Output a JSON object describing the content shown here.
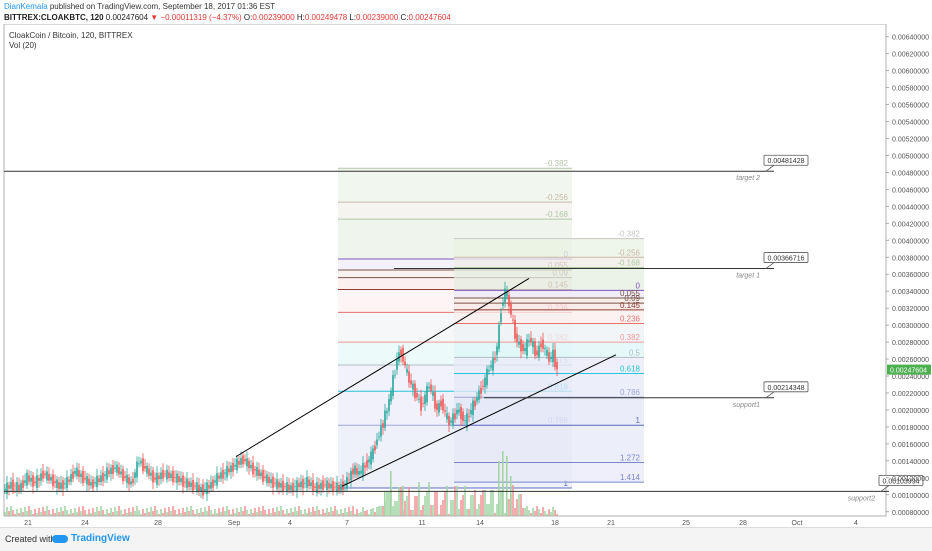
{
  "header": {
    "user": "DianKemala",
    "published": "published on TradingView.com, September 18, 2017 01:36 EST",
    "symbol": "BITTREX:CLOAKBTC, 120",
    "last": "0.00247604",
    "change": "▼ −0.00011319 (−4.37%)",
    "o_label": "O:",
    "o": "0.00239000",
    "h_label": "H:",
    "h": "0.00249478",
    "l_label": "L:",
    "l": "0.00239000",
    "c_label": "C:",
    "c": "0.00247604"
  },
  "legend": {
    "title": "CloakCoin / Bitcoin, 120, BITTREX",
    "vol": "Vol (20)"
  },
  "footer": {
    "created": "Created with",
    "brand": "TradingView"
  },
  "chart_data": {
    "type": "candlestick",
    "title": "CloakCoin / Bitcoin, 120, BITTREX",
    "ylim": [
      0.00075,
      0.00655
    ],
    "y_ticks": [
      "0.00640000",
      "0.00620000",
      "0.00600000",
      "0.00580000",
      "0.00560000",
      "0.00540000",
      "0.00520000",
      "0.00500000",
      "0.00480000",
      "0.00460000",
      "0.00440000",
      "0.00420000",
      "0.00400000",
      "0.00380000",
      "0.00360000",
      "0.00340000",
      "0.00320000",
      "0.00300000",
      "0.00280000",
      "0.00260000",
      "0.00240000",
      "0.00220000",
      "0.00200000",
      "0.00180000",
      "0.00160000",
      "0.00140000",
      "0.00120000",
      "0.00100000",
      "0.00080000"
    ],
    "x_ticks": [
      "21",
      "24",
      "28",
      "Sep",
      "4",
      "7",
      "11",
      "14",
      "18",
      "21",
      "25",
      "28",
      "Oct",
      "4"
    ],
    "last_price": "0.00247604",
    "price_series": [
      [
        0,
        0.00105
      ],
      [
        8,
        0.00112
      ],
      [
        16,
        0.00108
      ],
      [
        24,
        0.0012
      ],
      [
        32,
        0.00114
      ],
      [
        40,
        0.00125
      ],
      [
        48,
        0.00118
      ],
      [
        56,
        0.0011
      ],
      [
        64,
        0.00115
      ],
      [
        72,
        0.00128
      ],
      [
        80,
        0.0012
      ],
      [
        88,
        0.00112
      ],
      [
        96,
        0.00118
      ],
      [
        104,
        0.00126
      ],
      [
        112,
        0.00132
      ],
      [
        120,
        0.00122
      ],
      [
        128,
        0.00113
      ],
      [
        136,
        0.0014
      ],
      [
        144,
        0.00128
      ],
      [
        152,
        0.00118
      ],
      [
        160,
        0.00125
      ],
      [
        168,
        0.00122
      ],
      [
        176,
        0.00118
      ],
      [
        184,
        0.00113
      ],
      [
        192,
        0.0011
      ],
      [
        200,
        0.00105
      ],
      [
        208,
        0.00112
      ],
      [
        216,
        0.00122
      ],
      [
        224,
        0.00128
      ],
      [
        232,
        0.00135
      ],
      [
        240,
        0.00142
      ],
      [
        248,
        0.00132
      ],
      [
        256,
        0.00125
      ],
      [
        264,
        0.00118
      ],
      [
        272,
        0.00113
      ],
      [
        280,
        0.0011
      ],
      [
        288,
        0.00108
      ],
      [
        296,
        0.00112
      ],
      [
        304,
        0.00115
      ],
      [
        312,
        0.00108
      ],
      [
        320,
        0.00112
      ],
      [
        328,
        0.0011
      ],
      [
        336,
        0.00108
      ],
      [
        344,
        0.00115
      ],
      [
        350,
        0.0013
      ],
      [
        356,
        0.00125
      ],
      [
        362,
        0.00135
      ],
      [
        368,
        0.00145
      ],
      [
        374,
        0.00165
      ],
      [
        380,
        0.00185
      ],
      [
        386,
        0.0021
      ],
      [
        390,
        0.00235
      ],
      [
        394,
        0.0026
      ],
      [
        398,
        0.0027
      ],
      [
        402,
        0.0025
      ],
      [
        406,
        0.00235
      ],
      [
        410,
        0.00225
      ],
      [
        414,
        0.00215
      ],
      [
        418,
        0.00205
      ],
      [
        422,
        0.00215
      ],
      [
        426,
        0.0023
      ],
      [
        430,
        0.00215
      ],
      [
        434,
        0.002
      ],
      [
        438,
        0.0021
      ],
      [
        442,
        0.00195
      ],
      [
        446,
        0.00185
      ],
      [
        450,
        0.0019
      ],
      [
        454,
        0.002
      ],
      [
        458,
        0.00195
      ],
      [
        462,
        0.00185
      ],
      [
        466,
        0.00195
      ],
      [
        470,
        0.00205
      ],
      [
        474,
        0.00215
      ],
      [
        478,
        0.00225
      ],
      [
        482,
        0.00235
      ],
      [
        486,
        0.0025
      ],
      [
        490,
        0.00255
      ],
      [
        494,
        0.00275
      ],
      [
        498,
        0.0032
      ],
      [
        502,
        0.0034
      ],
      [
        506,
        0.00325
      ],
      [
        510,
        0.003
      ],
      [
        514,
        0.0028
      ],
      [
        518,
        0.00275
      ],
      [
        522,
        0.0027
      ],
      [
        526,
        0.00285
      ],
      [
        530,
        0.00275
      ],
      [
        534,
        0.00265
      ],
      [
        538,
        0.0028
      ],
      [
        542,
        0.0027
      ],
      [
        546,
        0.0026
      ],
      [
        550,
        0.00265
      ],
      [
        554,
        0.00248
      ]
    ],
    "trendlines": [
      {
        "x1": 232,
        "y1": 0.00145,
        "x2": 525,
        "y2": 0.00355
      },
      {
        "x1": 338,
        "y1": 0.0011,
        "x2": 612,
        "y2": 0.00265
      }
    ],
    "horizontal_lines": [
      {
        "price": 0.00481428,
        "x1": 0,
        "x2": 770,
        "label": "0.00481428",
        "note": "target 2"
      },
      {
        "price": 0.00366716,
        "x1": 390,
        "x2": 770,
        "label": "0.00366716",
        "note": "target 1"
      },
      {
        "price": 0.00214348,
        "x1": 480,
        "x2": 770,
        "label": "0.00214348",
        "note": "support1"
      },
      {
        "price": 0.00103994,
        "x1": 0,
        "x2": 885,
        "label": "0.00103994",
        "note": "support2"
      }
    ],
    "fib_a": {
      "x1": 334,
      "x2": 568,
      "levels": [
        {
          "label": "-0.382",
          "price": 0.00485,
          "color": "#b6c7a8"
        },
        {
          "label": "-0.256",
          "price": 0.00445,
          "color": "#c9b9aa"
        },
        {
          "label": "-0.168",
          "price": 0.00425,
          "color": "#aecba4"
        },
        {
          "label": "0",
          "price": 0.00378,
          "color": "#7e57c2"
        },
        {
          "label": "0.055",
          "price": 0.00365,
          "color": "#795548"
        },
        {
          "label": "0.09",
          "price": 0.00356,
          "color": "#795548"
        },
        {
          "label": "0.145",
          "price": 0.00342,
          "color": "#8d3b2f"
        },
        {
          "label": "0.236",
          "price": 0.00315,
          "color": "#e57373"
        },
        {
          "label": "0.382",
          "price": 0.0028,
          "color": "#ef9a9a"
        },
        {
          "label": "0.5",
          "price": 0.00253,
          "color": "#b0bec5"
        },
        {
          "label": "0.618",
          "price": 0.00222,
          "color": "#26c6da"
        },
        {
          "label": "0.786",
          "price": 0.00182,
          "color": "#9fa8da"
        },
        {
          "label": "1",
          "price": 0.00108,
          "color": "#5c6bc0"
        }
      ]
    },
    "fib_b": {
      "x1": 450,
      "x2": 640,
      "levels": [
        {
          "label": "-0.382",
          "price": 0.00402,
          "color": "#c5c5c5"
        },
        {
          "label": "-0.256",
          "price": 0.0038,
          "color": "#c9b9aa"
        },
        {
          "label": "-0.168",
          "price": 0.00368,
          "color": "#aecba4"
        },
        {
          "label": "0",
          "price": 0.00341,
          "color": "#7e57c2"
        },
        {
          "label": "0.055",
          "price": 0.00332,
          "color": "#795548"
        },
        {
          "label": "0.09",
          "price": 0.00326,
          "color": "#795548"
        },
        {
          "label": "0.145",
          "price": 0.00318,
          "color": "#8d3b2f"
        },
        {
          "label": "0.236",
          "price": 0.00302,
          "color": "#e57373"
        },
        {
          "label": "0.382",
          "price": 0.0028,
          "color": "#ef9a9a"
        },
        {
          "label": "0.5",
          "price": 0.00262,
          "color": "#b0bec5"
        },
        {
          "label": "0.618",
          "price": 0.00243,
          "color": "#26c6da"
        },
        {
          "label": "0.786",
          "price": 0.00215,
          "color": "#9fa8da"
        },
        {
          "label": "1",
          "price": 0.00182,
          "color": "#5c6bc0"
        },
        {
          "label": "1.272",
          "price": 0.00138,
          "color": "#7986cb"
        },
        {
          "label": "1.414",
          "price": 0.00115,
          "color": "#7986cb"
        }
      ]
    },
    "colors": {
      "up": "#26a69a",
      "down": "#ef5350",
      "line": "#000000",
      "last_bg": "#4caf50",
      "volume_up": "#a5d6a7",
      "volume_down": "#ef9a9a"
    }
  }
}
